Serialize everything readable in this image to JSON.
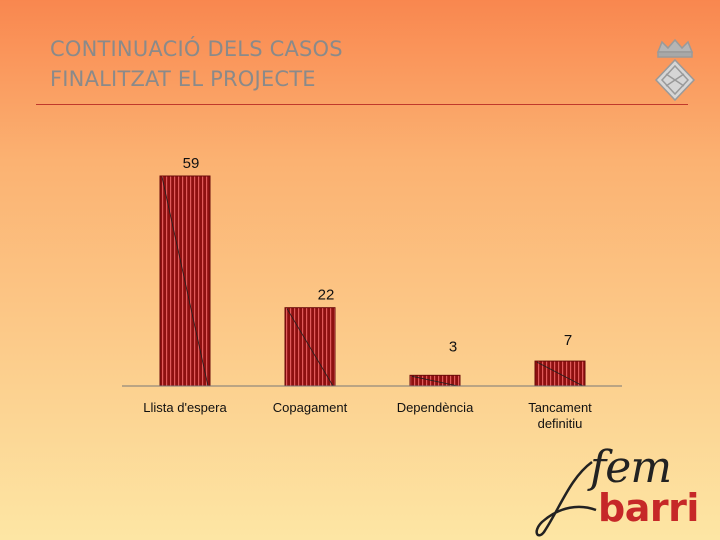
{
  "header": {
    "title_line1": "CONTINUACIÓ DELS CASOS",
    "title_line2": "FINALITZAT EL PROJECTE"
  },
  "chart_data": {
    "type": "bar",
    "categories": [
      "Llista d'espera",
      "Copagament",
      "Dependència",
      "Tancament definitiu"
    ],
    "category_lines": [
      [
        "Llista d'espera"
      ],
      [
        "Copagament"
      ],
      [
        "Dependència"
      ],
      [
        "Tancament",
        "definitiu"
      ]
    ],
    "values": [
      59,
      22,
      3,
      7
    ],
    "title": "",
    "xlabel": "",
    "ylabel": "",
    "ylim": [
      0,
      60
    ],
    "grid": false,
    "legend": "none"
  },
  "logo": {
    "line1": "fem",
    "line2": "barri"
  },
  "colors": {
    "bar_fill": "#8e1010",
    "bar_stripe": "#e05a5a",
    "axis": "#777777",
    "title": "#8a8a8a",
    "rule": "#c0392b",
    "logo_red": "#c62828"
  }
}
